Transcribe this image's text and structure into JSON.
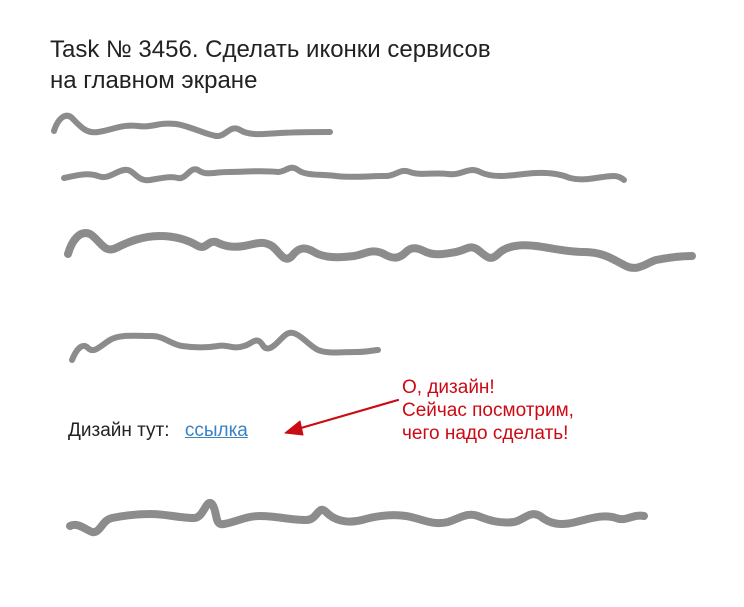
{
  "task": {
    "title_line1": "Task № 3456. Сделать иконки сервисов",
    "title_line2": "на главном экране"
  },
  "design": {
    "label": "Дизайн тут:",
    "link_text": "ссылка"
  },
  "comment": {
    "line1": "О, дизайн!",
    "line2": "Сейчас посмотрим,",
    "line3": "чего надо сделать!"
  },
  "colors": {
    "scribble": "#8c8c8c",
    "link": "#3b82c4",
    "comment": "#cc0a14"
  }
}
